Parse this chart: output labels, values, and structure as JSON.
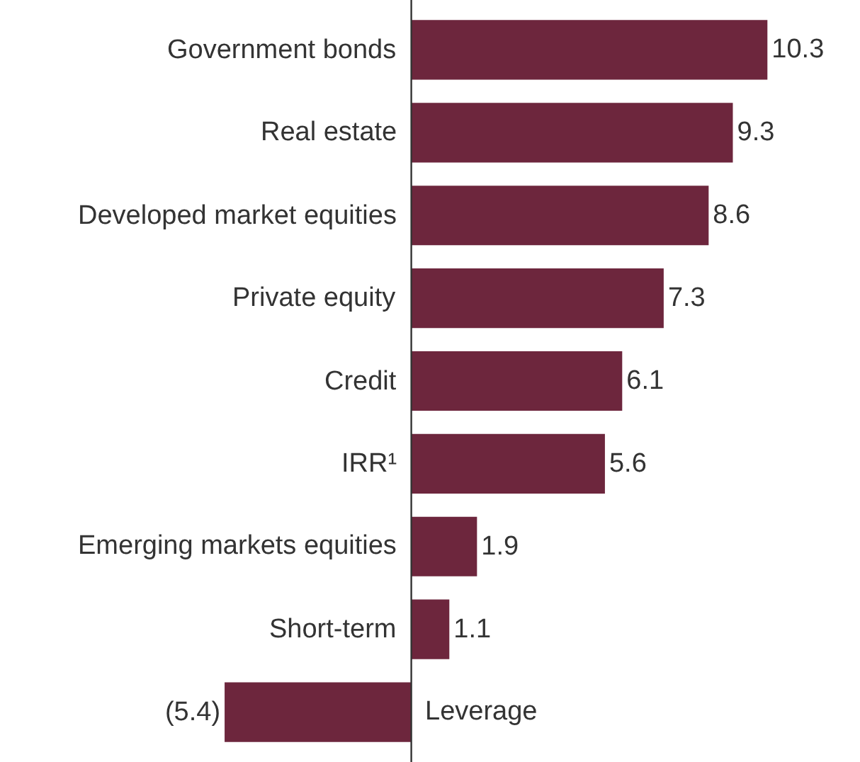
{
  "chart_data": {
    "type": "bar",
    "orientation": "horizontal",
    "categories": [
      "Government bonds",
      "Real estate",
      "Developed market equities",
      "Private equity",
      "Credit",
      "IRR¹",
      "Emerging markets equities",
      "Short-term",
      "Leverage"
    ],
    "values": [
      10.3,
      9.3,
      8.6,
      7.3,
      6.1,
      5.6,
      1.9,
      1.1,
      -5.4
    ],
    "value_labels": [
      "10.3",
      "9.3",
      "8.6",
      "7.3",
      "6.1",
      "5.6",
      "1.9",
      "1.1",
      "(5.4)"
    ],
    "color": "#6d263d"
  }
}
